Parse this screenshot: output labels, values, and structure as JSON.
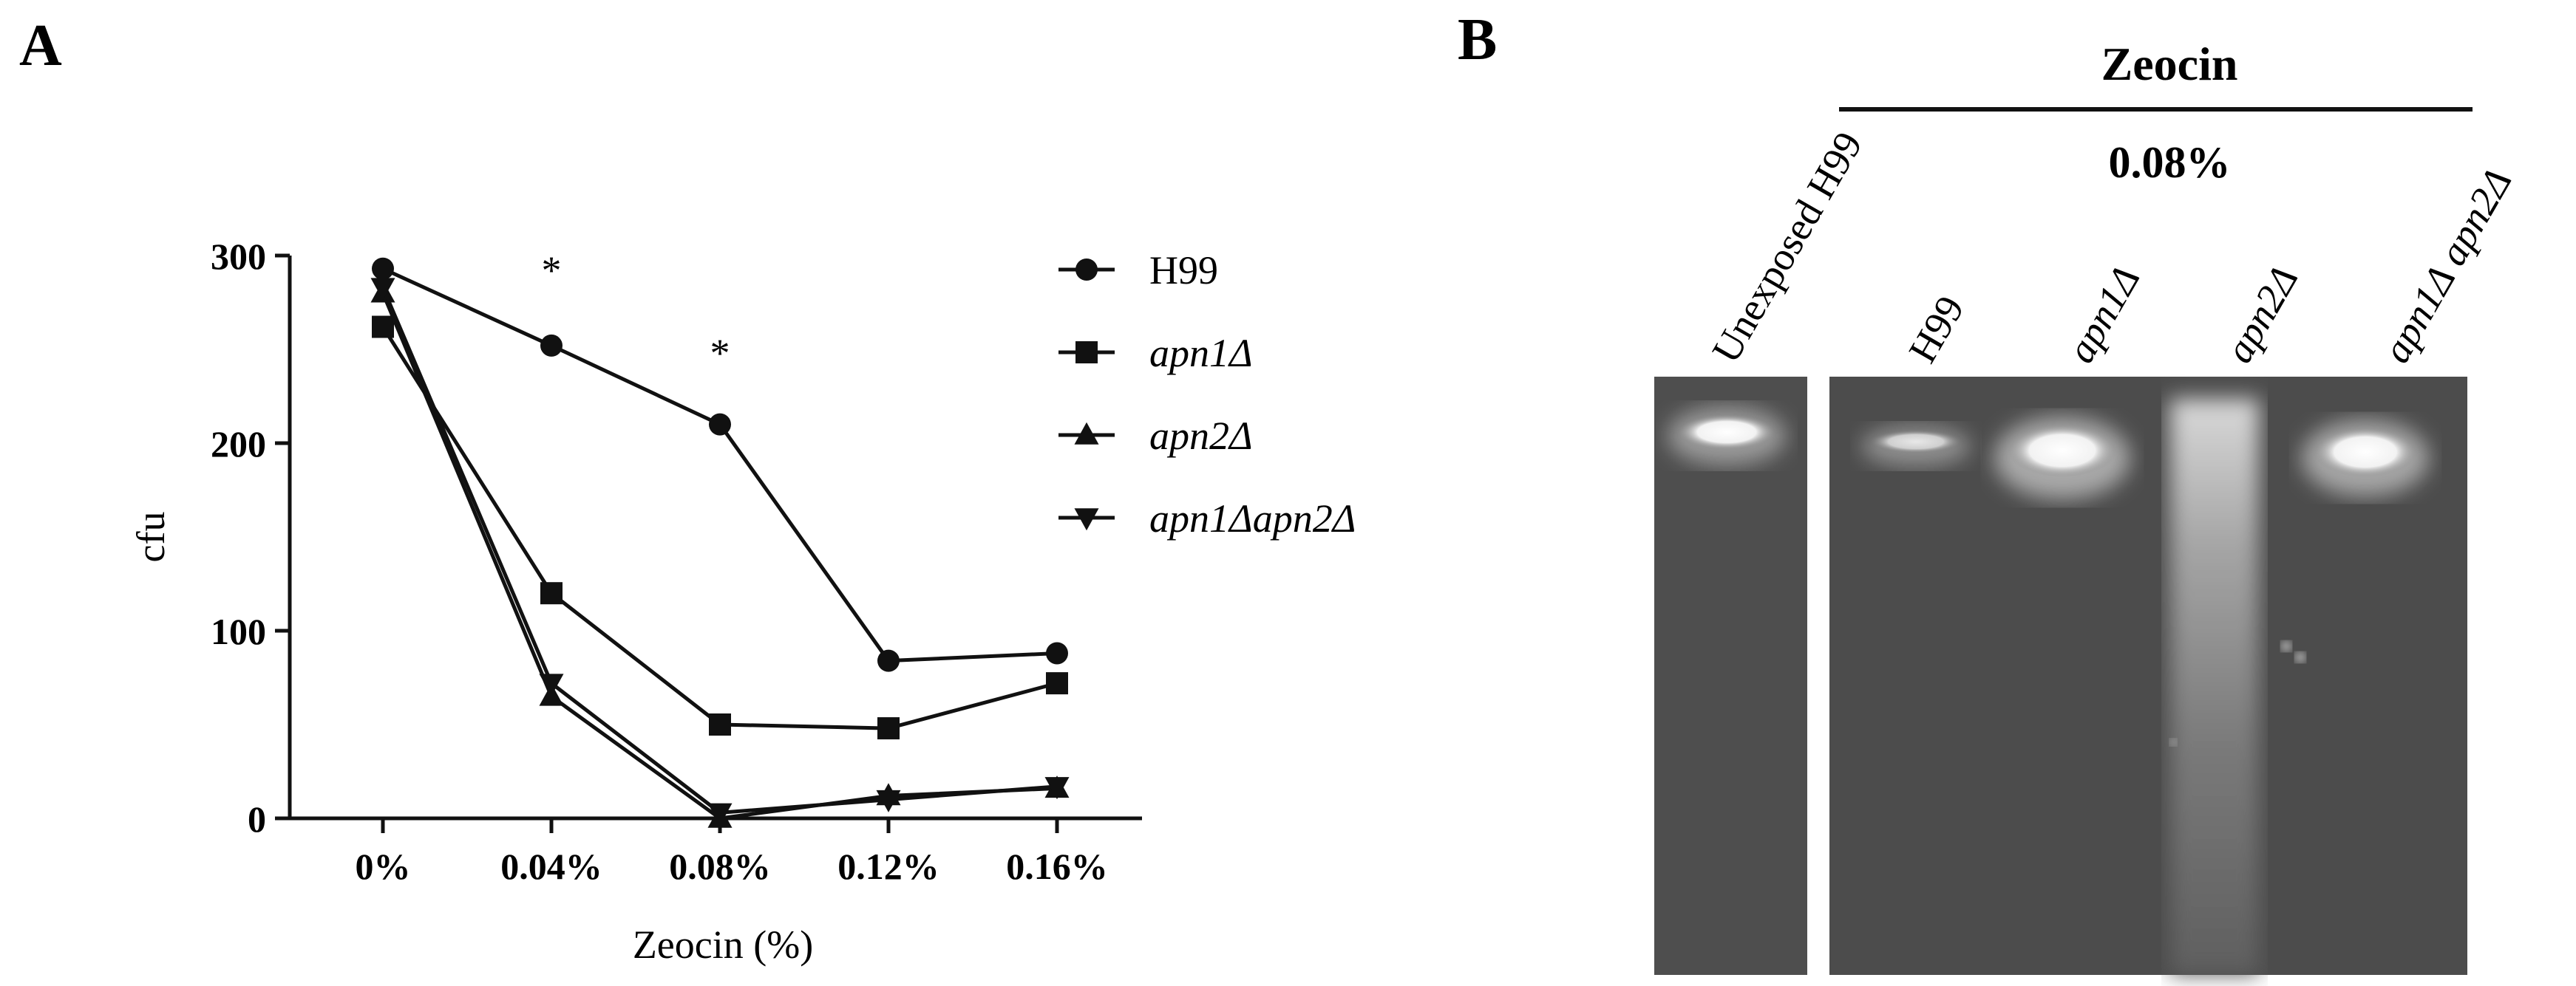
{
  "panel_a": {
    "label": "A"
  },
  "panel_b": {
    "label": "B",
    "header": "Zeocin",
    "concentration": "0.08%",
    "unexposed_label": "Unexposed H99",
    "lanes": [
      {
        "label": "H99",
        "italic": false,
        "band": "sharp-faint"
      },
      {
        "label": "apn1Δ",
        "italic": true,
        "band": "sharp-bright"
      },
      {
        "label": "apn2Δ",
        "italic": true,
        "band": "smear"
      },
      {
        "label": "apn1Δ apn2Δ",
        "italic": true,
        "band": "sharp-bright"
      }
    ],
    "colors": {
      "gel": "#4f4f4f",
      "band": "#ffffff"
    }
  },
  "chart_data": {
    "type": "line",
    "title": "",
    "xlabel": "Zeocin (%)",
    "ylabel": "cfu",
    "categories": [
      "0%",
      "0.04%",
      "0.08%",
      "0.12%",
      "0.16%"
    ],
    "yticks": [
      "0",
      "100",
      "200",
      "300"
    ],
    "ylim": [
      0,
      300
    ],
    "legend_position": "right",
    "grid": false,
    "annotations": [
      {
        "text": "*",
        "category": "0.04%",
        "y": 300
      },
      {
        "text": "*",
        "category": "0.08%",
        "y": 256
      }
    ],
    "series": [
      {
        "name": "H99",
        "marker": "circle",
        "values": [
          293,
          252,
          210,
          84,
          88
        ]
      },
      {
        "name": "apn1Δ",
        "marker": "square",
        "values": [
          262,
          120,
          50,
          48,
          72
        ]
      },
      {
        "name": "apn2Δ",
        "marker": "triangle-up",
        "values": [
          280,
          65,
          0,
          12,
          16
        ]
      },
      {
        "name": "apn1Δapn2Δ",
        "marker": "triangle-down",
        "values": [
          283,
          72,
          3,
          10,
          17
        ]
      }
    ]
  }
}
